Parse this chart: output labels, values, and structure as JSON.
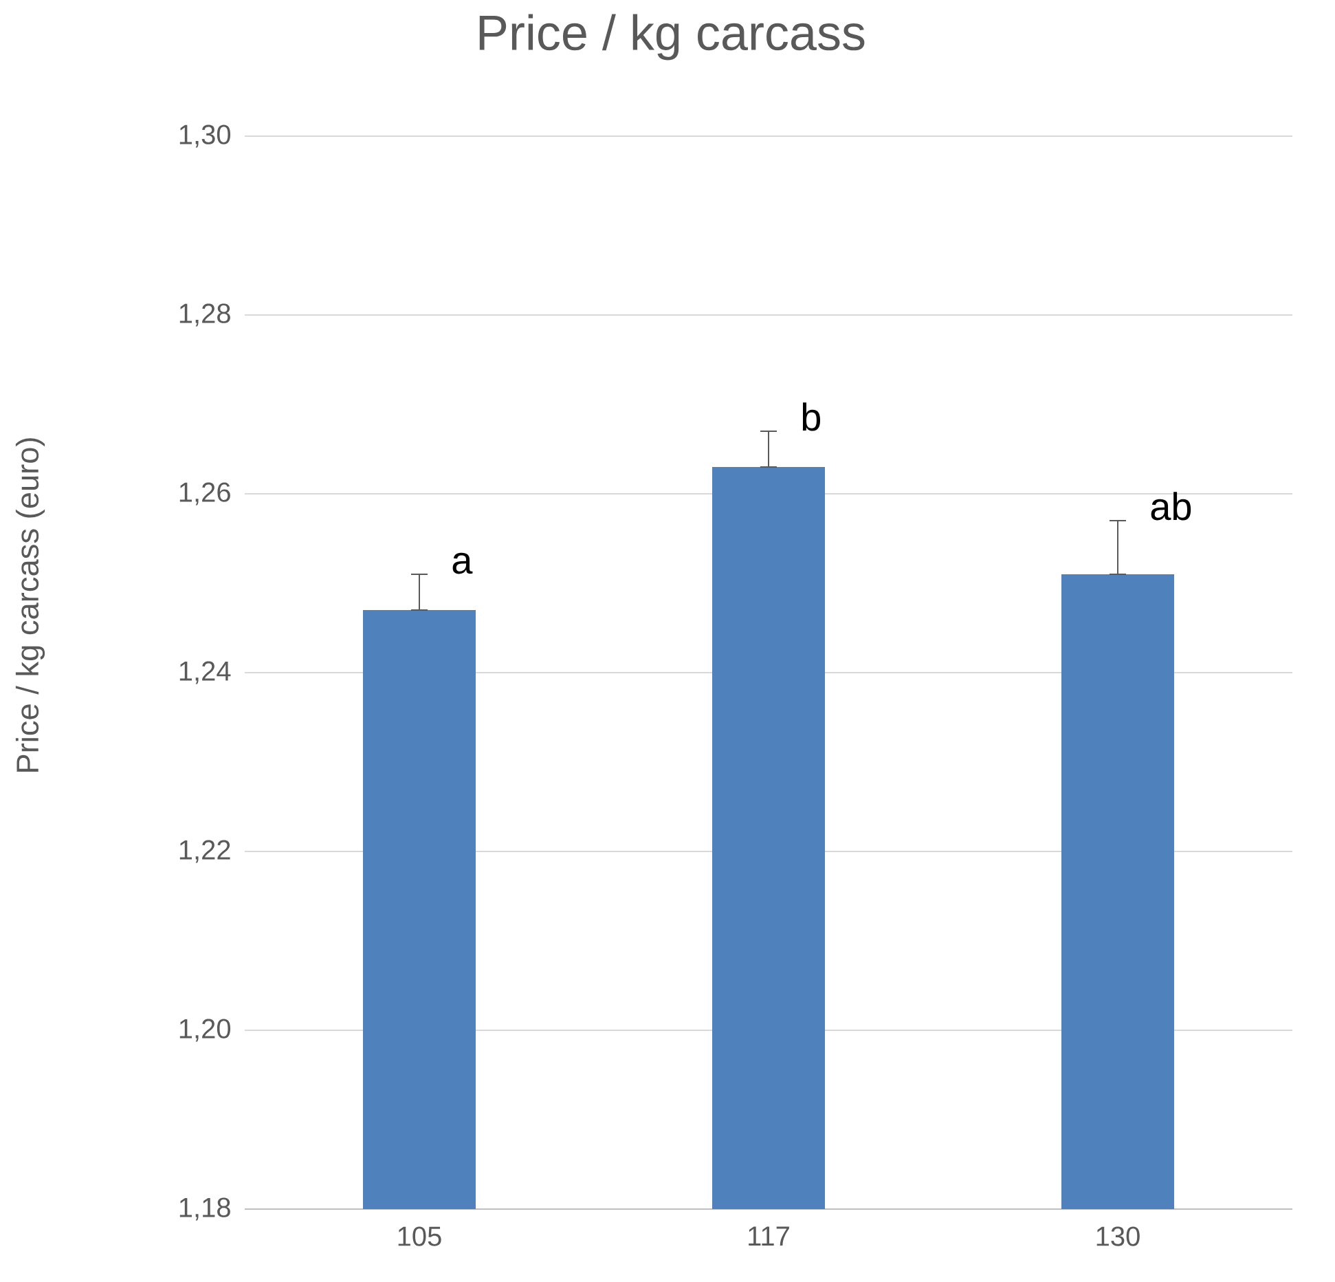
{
  "chart_data": {
    "type": "bar",
    "title": "Price / kg carcass",
    "ylabel": "Price / kg carcass (euro)",
    "categories": [
      "105",
      "117",
      "130"
    ],
    "values": [
      1.247,
      1.263,
      1.251
    ],
    "errors": [
      [
        1.247,
        1.251
      ],
      [
        1.263,
        1.267
      ],
      [
        1.251,
        1.257
      ]
    ],
    "color": "#4f81bd",
    "ylim": [
      1.18,
      1.3
    ],
    "yticks": [
      {
        "value": 1.18,
        "label": "1,18"
      },
      {
        "value": 1.2,
        "label": "1,20"
      },
      {
        "value": 1.22,
        "label": "1,22"
      },
      {
        "value": 1.24,
        "label": "1,24"
      },
      {
        "value": 1.26,
        "label": "1,26"
      },
      {
        "value": 1.28,
        "label": "1,28"
      },
      {
        "value": 1.3,
        "label": "1,30"
      }
    ],
    "grid": "y",
    "annotations": [
      {
        "text": "a",
        "x": "105",
        "y": 1.251
      },
      {
        "text": "b",
        "x": "117",
        "y": 1.267
      },
      {
        "text": "ab",
        "x": "130",
        "y": 1.257
      }
    ]
  }
}
